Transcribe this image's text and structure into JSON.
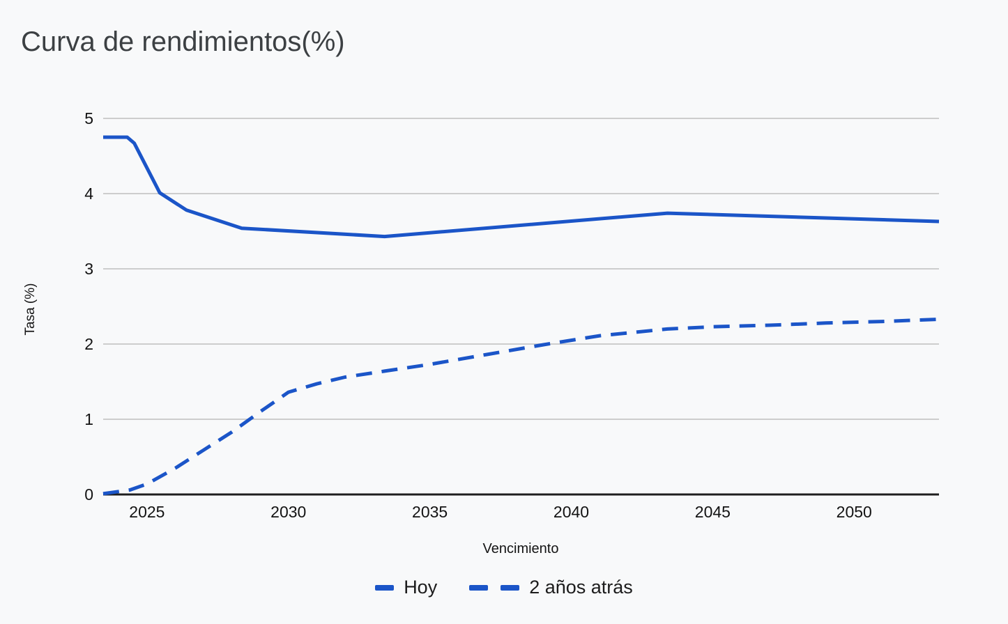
{
  "page": {
    "background": "#f8f9fa"
  },
  "chart": {
    "title": "Curva de rendimientos(%)",
    "x_axis_title": "Vencimiento",
    "y_axis_title": "Tasa (%)"
  },
  "colors": {
    "accent_blue": "#1b55c8",
    "gridline": "#cdcdcd",
    "axis_line": "#1f1f1f",
    "tick_text": "#131313",
    "title_text": "#3c4043"
  },
  "chart_data": {
    "type": "line",
    "title": "Curva de rendimientos(%)",
    "xlabel": "Vencimiento",
    "ylabel": "Tasa (%)",
    "xlim": [
      2023.45,
      2053
    ],
    "ylim": [
      0,
      5
    ],
    "xticks": [
      2025,
      2030,
      2035,
      2040,
      2045,
      2050
    ],
    "yticks": [
      0,
      1,
      2,
      3,
      4,
      5
    ],
    "grid": "horizontal-only",
    "legend_position": "bottom-center",
    "series": [
      {
        "name": "Hoy",
        "style": "solid",
        "color": "#1b55c8",
        "points": [
          [
            2023.45,
            4.75
          ],
          [
            2024.3,
            4.75
          ],
          [
            2024.55,
            4.67
          ],
          [
            2025.45,
            4.01
          ],
          [
            2026.4,
            3.78
          ],
          [
            2028.35,
            3.54
          ],
          [
            2033.4,
            3.43
          ],
          [
            2043.4,
            3.74
          ],
          [
            2053,
            3.63
          ]
        ]
      },
      {
        "name": "2 años atrás",
        "style": "dashed",
        "color": "#1b55c8",
        "points": [
          [
            2023.45,
            0.01
          ],
          [
            2024.4,
            0.06
          ],
          [
            2025,
            0.14
          ],
          [
            2026,
            0.35
          ],
          [
            2027,
            0.59
          ],
          [
            2028,
            0.83
          ],
          [
            2029,
            1.1
          ],
          [
            2030,
            1.36
          ],
          [
            2031,
            1.47
          ],
          [
            2032,
            1.56
          ],
          [
            2033.4,
            1.64
          ],
          [
            2035,
            1.73
          ],
          [
            2037,
            1.86
          ],
          [
            2039,
            1.99
          ],
          [
            2041,
            2.11
          ],
          [
            2043.4,
            2.2
          ],
          [
            2045,
            2.23
          ],
          [
            2047,
            2.25
          ],
          [
            2049,
            2.28
          ],
          [
            2051,
            2.3
          ],
          [
            2053,
            2.33
          ]
        ]
      }
    ]
  }
}
